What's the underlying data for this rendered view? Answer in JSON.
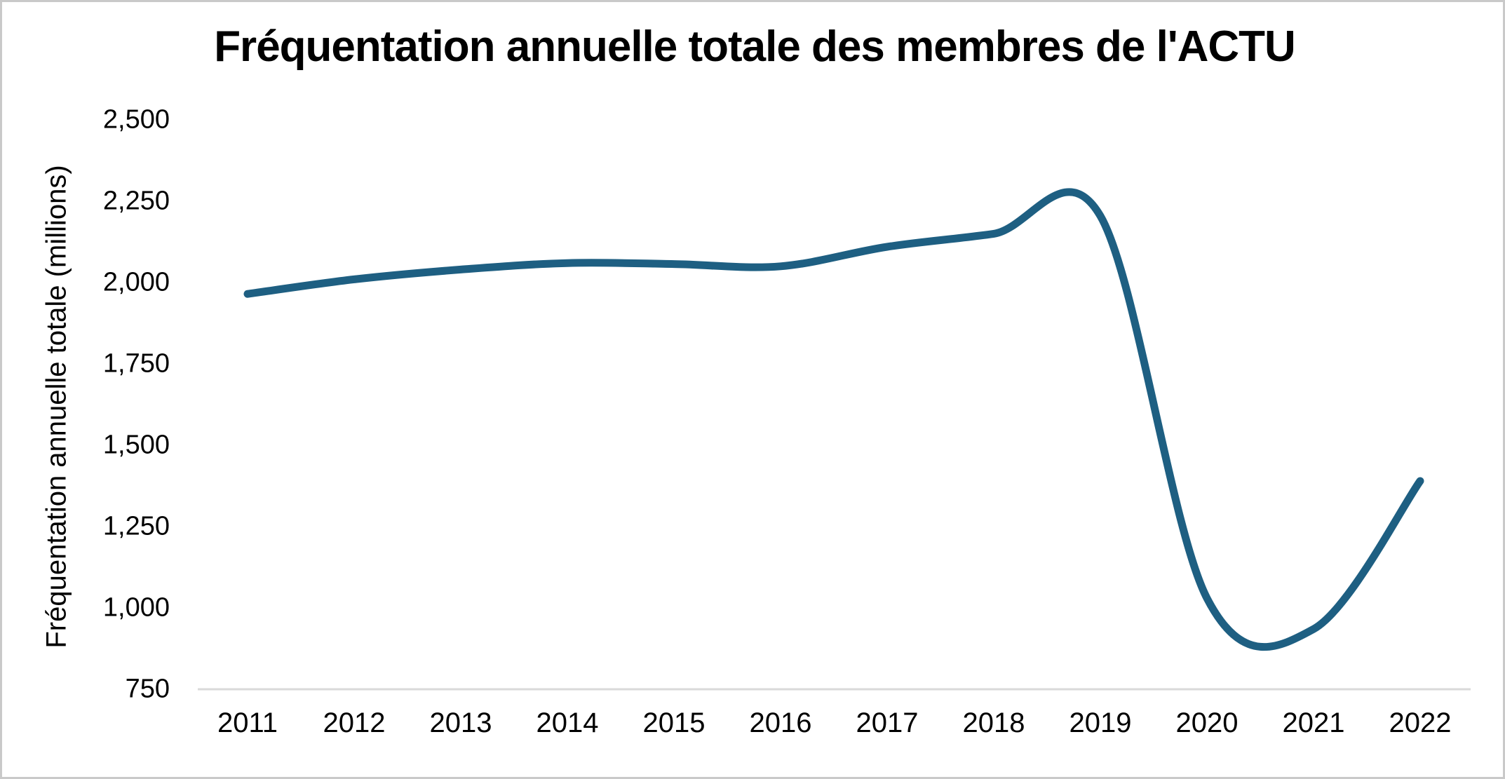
{
  "chart_data": {
    "type": "line",
    "title": "Fréquentation annuelle totale des membres de l'ACTU",
    "ylabel": "Fréquentation annuelle totale (millions)",
    "xlabel": "",
    "categories": [
      "2011",
      "2012",
      "2013",
      "2014",
      "2015",
      "2016",
      "2017",
      "2018",
      "2019",
      "2020",
      "2021",
      "2022"
    ],
    "values": [
      1965,
      2010,
      2040,
      2060,
      2057,
      2050,
      2110,
      2150,
      2205,
      1030,
      935,
      1390
    ],
    "ylim": [
      750,
      2500
    ],
    "ytick_values": [
      750,
      1000,
      1250,
      1500,
      1750,
      2000,
      2250,
      2500
    ],
    "ytick_labels": [
      "750",
      "1,000",
      "1,250",
      "1,500",
      "1,750",
      "2,000",
      "2,250",
      "2,500"
    ],
    "grid": false,
    "legend": "none",
    "smooth": true,
    "line_color": "#1E5F82",
    "axis_line_color": "#D9D9D9",
    "background_color": "#FFFFFF",
    "border_color": "#C9C9C9"
  }
}
